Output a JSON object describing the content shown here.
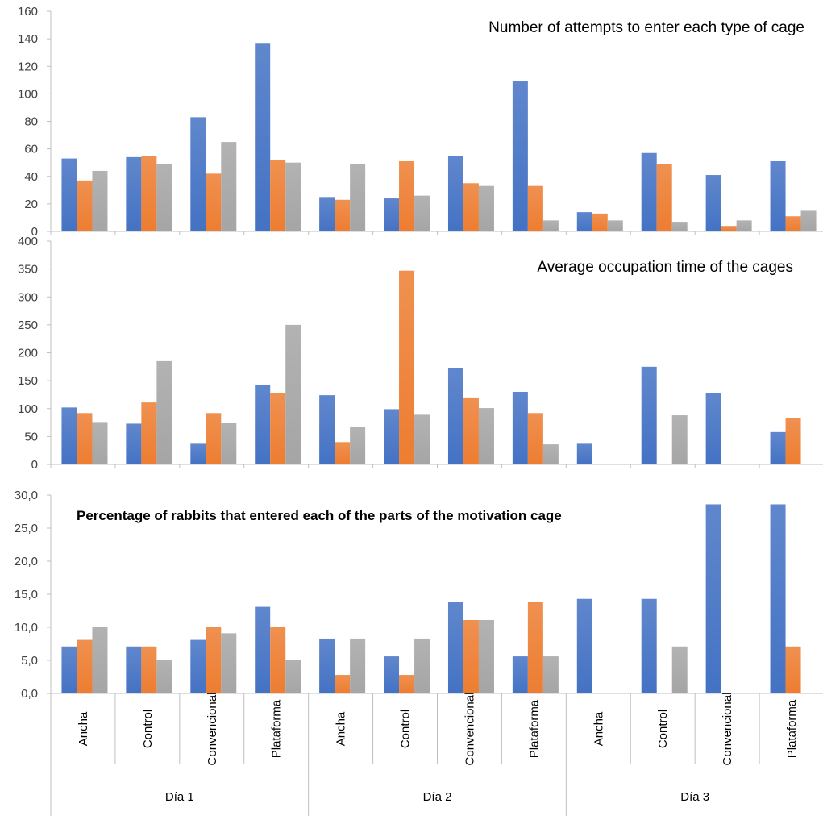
{
  "colors": {
    "series1": "#4472C4",
    "series2": "#ED7D31",
    "series3": "#A5A5A5",
    "axis": "#BFBFBF"
  },
  "chart_data": [
    {
      "type": "bar",
      "title": "Number of attempts to enter each type of cage",
      "ylim": [
        0,
        160
      ],
      "yticks": [
        "0",
        "20",
        "40",
        "60",
        "80",
        "100",
        "120",
        "140",
        "160"
      ],
      "legend": "none",
      "grid": false,
      "series": [
        {
          "values": [
            53,
            54,
            83,
            137,
            25,
            24,
            55,
            109,
            14,
            57,
            41,
            51
          ]
        },
        {
          "values": [
            37,
            55,
            42,
            52,
            23,
            51,
            35,
            33,
            13,
            49,
            4,
            11
          ]
        },
        {
          "values": [
            44,
            49,
            65,
            50,
            49,
            26,
            33,
            8,
            8,
            7,
            8,
            15
          ]
        }
      ]
    },
    {
      "type": "bar",
      "title": "Average occupation time of the cages",
      "ylim": [
        0,
        400
      ],
      "yticks": [
        "0",
        "50",
        "100",
        "150",
        "200",
        "250",
        "300",
        "350",
        "400"
      ],
      "legend": "none",
      "grid": false,
      "series": [
        {
          "values": [
            102,
            73,
            37,
            143,
            124,
            99,
            173,
            130,
            37,
            175,
            128,
            58
          ]
        },
        {
          "values": [
            92,
            111,
            92,
            128,
            40,
            347,
            120,
            92,
            0,
            0,
            0,
            83
          ]
        },
        {
          "values": [
            76,
            185,
            75,
            250,
            67,
            89,
            101,
            36,
            0,
            88,
            0,
            0
          ]
        }
      ]
    },
    {
      "type": "bar",
      "title": "Percentage of rabbits that entered each of the parts of the motivation cage",
      "ylim": [
        0,
        30
      ],
      "yticks": [
        "0,0",
        "5,0",
        "10,0",
        "15,0",
        "20,0",
        "25,0",
        "30,0"
      ],
      "legend": "none",
      "grid": false,
      "series": [
        {
          "values": [
            7.1,
            7.1,
            8.1,
            13.1,
            8.3,
            5.6,
            13.9,
            5.6,
            14.3,
            14.3,
            28.6,
            28.6
          ]
        },
        {
          "values": [
            8.1,
            7.1,
            10.1,
            10.1,
            2.8,
            2.8,
            11.1,
            13.9,
            0,
            0,
            0,
            7.1
          ]
        },
        {
          "values": [
            10.1,
            5.1,
            9.1,
            5.1,
            8.3,
            8.3,
            11.1,
            5.6,
            0,
            7.1,
            0,
            0
          ]
        }
      ]
    }
  ],
  "categories": [
    "Ancha",
    "Control",
    "Convencional",
    "Plataforma",
    "Ancha",
    "Control",
    "Convencional",
    "Plataforma",
    "Ancha",
    "Control",
    "Convencional",
    "Plataforma"
  ],
  "groups": [
    "Día 1",
    "Día 2",
    "Día 3"
  ]
}
